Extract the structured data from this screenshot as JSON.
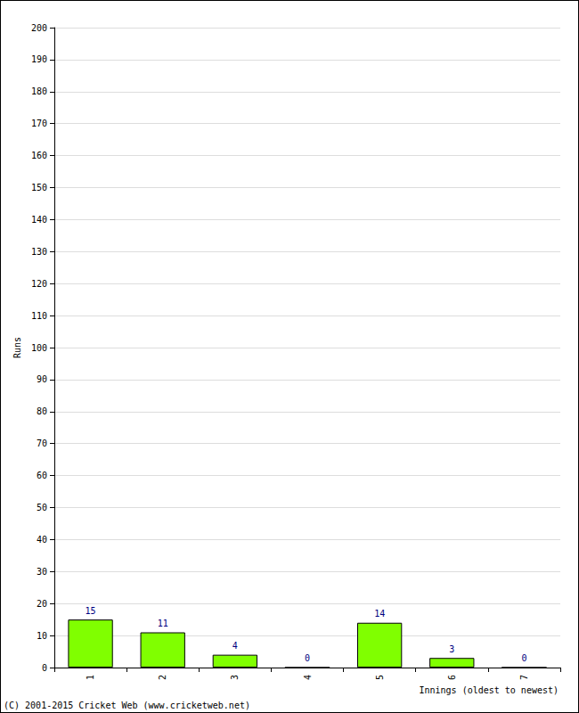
{
  "chart_data": {
    "type": "bar",
    "x_label": "Innings (oldest to newest)",
    "y_label": "Runs",
    "categories": [
      "1",
      "2",
      "3",
      "4",
      "5",
      "6",
      "7"
    ],
    "values": [
      15,
      11,
      4,
      0,
      14,
      3,
      0
    ],
    "color": "#80ff00",
    "ylim": [
      0,
      200
    ],
    "yticks": [
      0,
      10,
      20,
      30,
      40,
      50,
      60,
      70,
      80,
      90,
      100,
      110,
      120,
      130,
      140,
      150,
      160,
      170,
      180,
      190,
      200
    ],
    "grid": true,
    "data_labels": true,
    "annotations": [
      "(C) 2001-2015 Cricket Web (www.cricketweb.net)"
    ]
  }
}
